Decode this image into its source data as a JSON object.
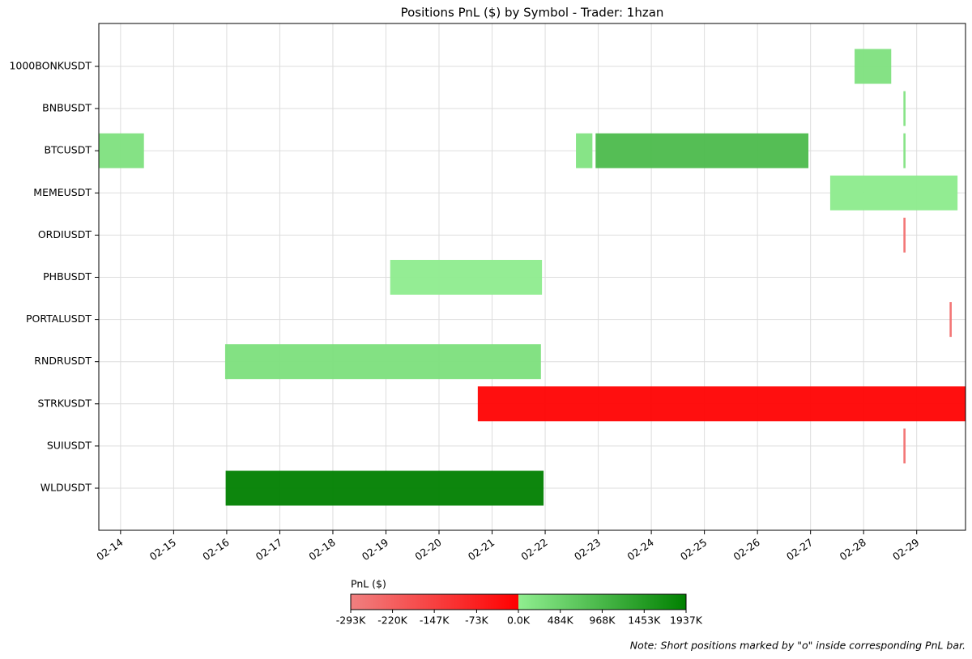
{
  "chart_data": {
    "type": "gantt",
    "title": "Positions PnL ($) by Symbol - Trader: 1hzan",
    "categories": [
      "1000BONKUSDT",
      "BNBUSDT",
      "BTCUSDT",
      "MEMEUSDT",
      "ORDIUSDT",
      "PHBUSDT",
      "PORTALUSDT",
      "RNDRUSDT",
      "STRKUSDT",
      "SUIUSDT",
      "WLDUSDT"
    ],
    "segments": [
      [
        {
          "start": 27.83,
          "end": 28.52,
          "pnl": 242000
        }
      ],
      [
        {
          "start": 28.75,
          "end": 28.79,
          "pnl": 200000
        }
      ],
      [
        {
          "start": 13.59,
          "end": 14.44,
          "pnl": 242000
        },
        {
          "start": 22.58,
          "end": 22.89,
          "pnl": 200000
        },
        {
          "start": 22.95,
          "end": 26.96,
          "pnl": 910000
        },
        {
          "start": 28.75,
          "end": 28.79,
          "pnl": 200000
        }
      ],
      [
        {
          "start": 27.37,
          "end": 29.77,
          "pnl": 60000
        }
      ],
      [
        {
          "start": 28.75,
          "end": 28.79,
          "pnl": -256000
        }
      ],
      [
        {
          "start": 19.08,
          "end": 21.94,
          "pnl": 30000
        }
      ],
      [
        {
          "start": 29.62,
          "end": 29.66,
          "pnl": -256000
        }
      ],
      [
        {
          "start": 15.97,
          "end": 21.92,
          "pnl": 270000
        }
      ],
      [
        {
          "start": 20.73,
          "end": 29.92,
          "pnl": -5000
        }
      ],
      [
        {
          "start": 28.75,
          "end": 28.79,
          "pnl": -256000
        }
      ],
      [
        {
          "start": 15.98,
          "end": 21.97,
          "pnl": 1937000
        }
      ]
    ],
    "xlim": [
      13.59,
      29.92
    ],
    "xticks": [
      {
        "value": 14,
        "label": "02-14"
      },
      {
        "value": 15,
        "label": "02-15"
      },
      {
        "value": 16,
        "label": "02-16"
      },
      {
        "value": 17,
        "label": "02-17"
      },
      {
        "value": 18,
        "label": "02-18"
      },
      {
        "value": 19,
        "label": "02-19"
      },
      {
        "value": 20,
        "label": "02-20"
      },
      {
        "value": 21,
        "label": "02-21"
      },
      {
        "value": 22,
        "label": "02-22"
      },
      {
        "value": 23,
        "label": "02-23"
      },
      {
        "value": 24,
        "label": "02-24"
      },
      {
        "value": 25,
        "label": "02-25"
      },
      {
        "value": 26,
        "label": "02-26"
      },
      {
        "value": 27,
        "label": "02-27"
      },
      {
        "value": 28,
        "label": "02-28"
      },
      {
        "value": 29,
        "label": "02-29"
      }
    ],
    "grid": true,
    "colorbar": {
      "label": "PnL ($)",
      "lim": [
        -293000,
        1937000
      ],
      "neg_colors": [
        "#f08080",
        "#ff0000"
      ],
      "pos_colors": [
        "#90ee90",
        "#008000"
      ],
      "ticks": [
        {
          "value": -293000,
          "label": "-293K"
        },
        {
          "value": -220000,
          "label": "-220K"
        },
        {
          "value": -147000,
          "label": "-147K"
        },
        {
          "value": -73000,
          "label": "-73K"
        },
        {
          "value": 0,
          "label": "0.0K"
        },
        {
          "value": 484000,
          "label": "484K"
        },
        {
          "value": 968000,
          "label": "968K"
        },
        {
          "value": 1453000,
          "label": "1453K"
        },
        {
          "value": 1937000,
          "label": "1937K"
        }
      ]
    },
    "note": "Note: Short positions marked by \"o\" inside corresponding PnL bar."
  }
}
